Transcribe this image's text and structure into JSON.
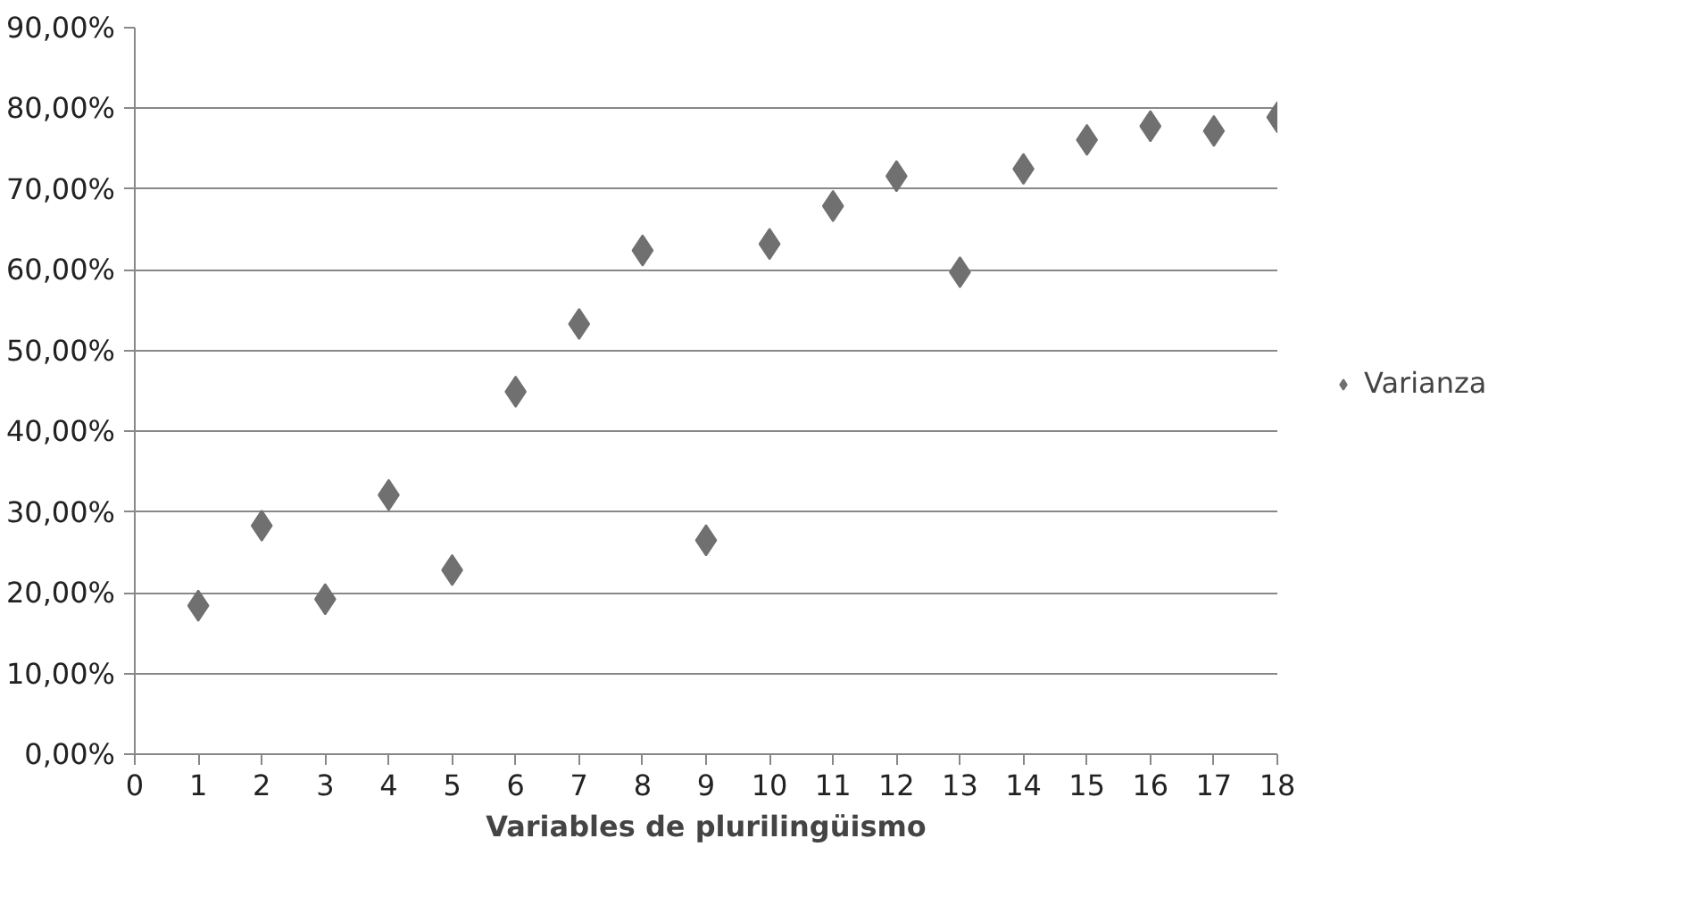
{
  "chart_data": {
    "type": "scatter",
    "xlabel": "Variables de plurilingüismo",
    "x": [
      1,
      2,
      3,
      4,
      5,
      6,
      7,
      8,
      9,
      10,
      11,
      12,
      13,
      14,
      15,
      16,
      17,
      18
    ],
    "series": [
      {
        "name": "Varianza",
        "color": "#707070",
        "values": [
          18.4,
          28.3,
          19.2,
          32.1,
          22.8,
          44.9,
          53.3,
          62.4,
          26.5,
          63.2,
          67.9,
          71.6,
          59.7,
          72.5,
          76.1,
          77.8,
          77.2,
          78.9
        ]
      }
    ],
    "xlim": [
      0,
      18
    ],
    "xticks": [
      0,
      1,
      2,
      3,
      4,
      5,
      6,
      7,
      8,
      9,
      10,
      11,
      12,
      13,
      14,
      15,
      16,
      17,
      18
    ],
    "ylim": [
      0,
      90
    ],
    "yticks": [
      {
        "value": 0,
        "label": "0,00%"
      },
      {
        "value": 10,
        "label": "10,00%"
      },
      {
        "value": 20,
        "label": "20,00%"
      },
      {
        "value": 30,
        "label": "30,00%"
      },
      {
        "value": 40,
        "label": "40,00%"
      },
      {
        "value": 50,
        "label": "50,00%"
      },
      {
        "value": 60,
        "label": "60,00%"
      },
      {
        "value": 70,
        "label": "70,00%"
      },
      {
        "value": 80,
        "label": "80,00%"
      },
      {
        "value": 90,
        "label": "90,00%"
      }
    ],
    "grid": "y",
    "legend": "right",
    "marker": "diamond"
  }
}
